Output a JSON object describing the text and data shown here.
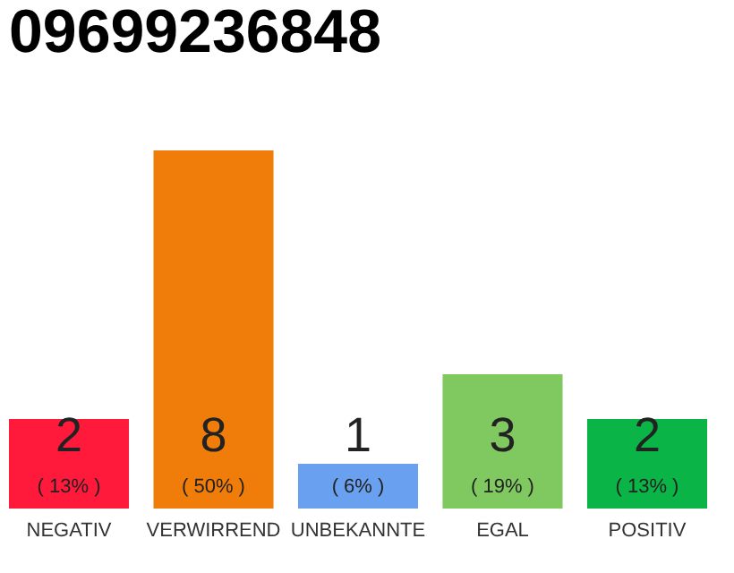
{
  "chart_data": {
    "type": "bar",
    "title": "09699236848",
    "categories": [
      "NEGATIV",
      "VERWIRREND",
      "UNBEKANNTE",
      "EGAL",
      "POSITIV"
    ],
    "values": [
      2,
      8,
      1,
      3,
      2
    ],
    "colors": [
      "#ff1a3c",
      "#f07d0a",
      "#6aa0f0",
      "#80c860",
      "#0ab446"
    ],
    "ylim": [
      0,
      8
    ],
    "tick_labels": "x",
    "data_labels": true,
    "annotations": [
      "( 13% )",
      "( 50% )",
      "( 6% )",
      "( 19% )",
      "( 13% )"
    ]
  }
}
